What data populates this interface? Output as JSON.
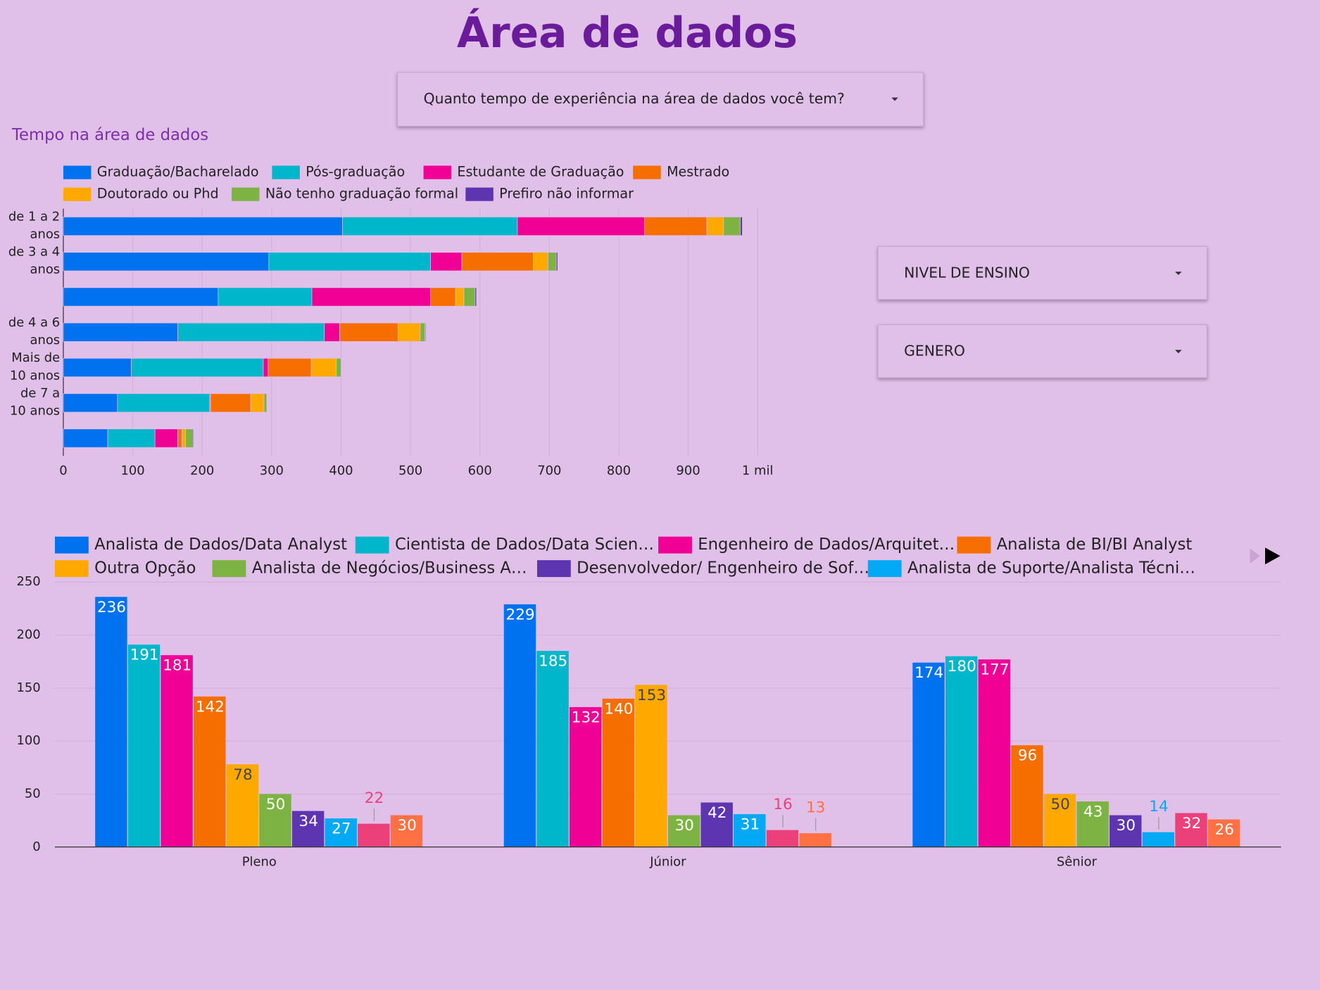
{
  "header": {
    "title": "Área de dados"
  },
  "filters": [
    "Quanto tempo de experiência na área de dados você tem?",
    "NIVEL DE ENSINO",
    "GENERO"
  ],
  "chart_data": [
    {
      "type": "stacked-hbar",
      "title": "Tempo na área de dados",
      "legend": "top",
      "grid": true,
      "categories": [
        "de 1 a 2 anos",
        "de 3 a 4 anos",
        null,
        "de 4 a 6 anos",
        "Mais de 10 anos",
        "de 7 a 10 anos",
        null
      ],
      "xlim": [
        0,
        1000
      ],
      "xticks": [
        0,
        100,
        200,
        300,
        400,
        500,
        600,
        700,
        800,
        900,
        {
          "value": 1000,
          "label": "1 mil"
        }
      ],
      "series": [
        {
          "name": "Graduação/Bacharelado",
          "color": "#0072f0",
          "values": [
            402,
            296,
            223,
            165,
            98,
            78,
            64
          ]
        },
        {
          "name": "Pós-graduação",
          "color": "#00b6cb",
          "values": [
            252,
            233,
            135,
            211,
            190,
            133,
            68
          ]
        },
        {
          "name": "Estudante de Graduação",
          "color": "#f10096",
          "values": [
            183,
            45,
            171,
            22,
            7,
            1,
            33
          ]
        },
        {
          "name": "Mestrado",
          "color": "#f66d00",
          "values": [
            90,
            103,
            36,
            84,
            62,
            58,
            6
          ]
        },
        {
          "name": "Doutorado ou Phd",
          "color": "#ffa800",
          "values": [
            24,
            21,
            12,
            32,
            36,
            19,
            5
          ]
        },
        {
          "name": "Não tenho graduação formal",
          "color": "#7cb342",
          "values": [
            24,
            12,
            16,
            7,
            7,
            4,
            11
          ]
        },
        {
          "name": "Prefiro não informar",
          "color": "#5e35b1",
          "values": [
            3,
            2,
            2,
            1,
            0,
            0,
            1
          ]
        }
      ]
    },
    {
      "type": "grouped-bar",
      "legend": "top",
      "grid": true,
      "categories": [
        "Pleno",
        "Júnior",
        "Sênior"
      ],
      "ylim": [
        0,
        250
      ],
      "yticks": [
        0,
        50,
        100,
        150,
        200,
        250
      ],
      "series": [
        {
          "name": "Analista de Dados/Data Analyst",
          "color": "#0072f0",
          "values": [
            236,
            229,
            174
          ]
        },
        {
          "name": "Cientista de Dados/Data Scien…",
          "color": "#00b6cb",
          "values": [
            191,
            185,
            180
          ]
        },
        {
          "name": "Engenheiro de Dados/Arquitet…",
          "color": "#f10096",
          "values": [
            181,
            132,
            177
          ]
        },
        {
          "name": "Analista de BI/BI Analyst",
          "color": "#f66d00",
          "values": [
            142,
            140,
            96
          ]
        },
        {
          "name": "Outra Opção",
          "color": "#ffa800",
          "values": [
            78,
            153,
            50
          ]
        },
        {
          "name": "Analista de Negócios/Business A…",
          "color": "#7cb342",
          "values": [
            50,
            30,
            43
          ]
        },
        {
          "name": "Desenvolvedor/ Engenheiro de Sof…",
          "color": "#5e35b1",
          "values": [
            34,
            42,
            30
          ]
        },
        {
          "name": "Analista de Suporte/Analista Técni…",
          "color": "#03a9f4",
          "values": [
            27,
            31,
            14
          ]
        },
        {
          "color": "#ec407a",
          "values": [
            22,
            16,
            32
          ]
        },
        {
          "color": "#ff7043",
          "values": [
            30,
            13,
            26
          ]
        }
      ]
    }
  ]
}
